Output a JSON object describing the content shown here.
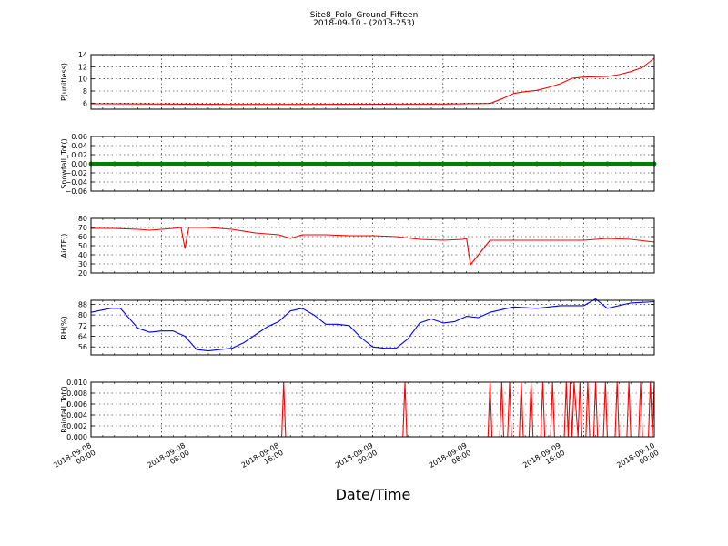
{
  "figure": {
    "title": "Site8_Polo_Ground_Fifteen",
    "subtitle": "2018-09-10 - (2018-253)",
    "xlabel": "Date/Time"
  },
  "chart_data": [
    {
      "type": "line",
      "ylabel": "P(unitless)",
      "ylim": [
        5,
        14
      ],
      "yticks": [
        "6",
        "8",
        "10",
        "12",
        "14"
      ],
      "xlim": [
        "2018-09-08 00:00",
        "2018-09-10 00:00"
      ],
      "grid": true,
      "series": [
        {
          "color": "#ff0000",
          "x": [
            "2018-09-08 00:00",
            "2018-09-08 06:00",
            "2018-09-08 12:00",
            "2018-09-08 18:00",
            "2018-09-09 00:00",
            "2018-09-09 06:00",
            "2018-09-09 08:00",
            "2018-09-09 10:00",
            "2018-09-09 11:00",
            "2018-09-09 12:00",
            "2018-09-09 13:00",
            "2018-09-09 14:00",
            "2018-09-09 15:00",
            "2018-09-09 16:00",
            "2018-09-09 17:00",
            "2018-09-09 18:00",
            "2018-09-09 19:00",
            "2018-09-09 20:00",
            "2018-09-09 21:00",
            "2018-09-09 22:00",
            "2018-09-09 23:00",
            "2018-09-10 00:00"
          ],
          "values": [
            5.9,
            5.85,
            5.8,
            5.8,
            5.82,
            5.85,
            5.9,
            5.95,
            6.7,
            7.6,
            7.9,
            8.1,
            8.6,
            9.2,
            10.1,
            10.3,
            10.35,
            10.4,
            10.7,
            11.2,
            11.9,
            13.4
          ]
        }
      ]
    },
    {
      "type": "scatter",
      "ylabel": "Snowfall_Tot()",
      "ylim": [
        -0.06,
        0.06
      ],
      "yticks": [
        "−0.06",
        "−0.04",
        "−0.02",
        "0.00",
        "0.02",
        "0.04",
        "0.06"
      ],
      "xlim": [
        "2018-09-08 00:00",
        "2018-09-10 00:00"
      ],
      "grid": true,
      "series": [
        {
          "color": "#008000",
          "x": [
            "2018-09-08 00:00",
            "2018-09-08 02:00",
            "2018-09-08 04:00",
            "2018-09-08 06:00",
            "2018-09-08 08:00",
            "2018-09-08 10:00",
            "2018-09-08 12:00",
            "2018-09-08 14:00",
            "2018-09-08 16:00",
            "2018-09-08 18:00",
            "2018-09-08 20:00",
            "2018-09-08 22:00",
            "2018-09-09 00:00",
            "2018-09-09 02:00",
            "2018-09-09 04:00",
            "2018-09-09 06:00",
            "2018-09-09 08:00",
            "2018-09-09 10:00",
            "2018-09-09 12:00",
            "2018-09-09 14:00",
            "2018-09-09 16:00",
            "2018-09-09 18:00",
            "2018-09-09 20:00",
            "2018-09-09 22:00",
            "2018-09-10 00:00"
          ],
          "values": [
            0,
            0,
            0,
            0,
            0,
            0,
            0,
            0,
            0,
            0,
            0,
            0,
            0,
            0,
            0,
            0,
            0,
            0,
            0,
            0,
            0,
            0,
            0,
            0,
            0
          ]
        }
      ]
    },
    {
      "type": "line",
      "ylabel": "AirTF()",
      "ylim": [
        20,
        80
      ],
      "yticks": [
        "20",
        "30",
        "40",
        "50",
        "60",
        "70",
        "80"
      ],
      "xlim": [
        "2018-09-08 00:00",
        "2018-09-10 00:00"
      ],
      "grid": true,
      "series": [
        {
          "color": "#ff0000",
          "x": [
            "2018-09-08 00:00",
            "2018-09-08 02:00",
            "2018-09-08 04:00",
            "2018-09-08 05:00",
            "2018-09-08 07:00",
            "2018-09-08 07:40",
            "2018-09-08 08:00",
            "2018-09-08 08:20",
            "2018-09-08 10:00",
            "2018-09-08 12:00",
            "2018-09-08 14:00",
            "2018-09-08 16:00",
            "2018-09-08 17:00",
            "2018-09-08 18:00",
            "2018-09-08 20:00",
            "2018-09-08 22:00",
            "2018-09-09 00:00",
            "2018-09-09 02:00",
            "2018-09-09 04:00",
            "2018-09-09 06:00",
            "2018-09-09 07:40",
            "2018-09-09 08:00",
            "2018-09-09 08:20",
            "2018-09-09 10:00",
            "2018-09-09 12:00",
            "2018-09-09 14:00",
            "2018-09-09 16:00",
            "2018-09-09 18:00",
            "2018-09-09 20:00",
            "2018-09-09 22:00",
            "2018-09-10 00:00"
          ],
          "values": [
            69,
            69,
            68,
            67,
            69,
            70,
            47,
            70,
            70,
            68,
            64,
            62,
            58,
            62,
            62,
            61,
            61,
            60,
            57,
            56,
            57,
            58,
            29,
            56,
            56,
            56,
            56,
            56,
            58,
            57,
            54
          ]
        }
      ]
    },
    {
      "type": "line",
      "ylabel": "RH(%)",
      "ylim": [
        50,
        91
      ],
      "yticks": [
        "56",
        "64",
        "72",
        "80",
        "88"
      ],
      "xlim": [
        "2018-09-08 00:00",
        "2018-09-10 00:00"
      ],
      "grid": true,
      "series": [
        {
          "color": "#0000ff",
          "x": [
            "2018-09-08 00:00",
            "2018-09-08 01:40",
            "2018-09-08 02:30",
            "2018-09-08 03:00",
            "2018-09-08 04:00",
            "2018-09-08 05:00",
            "2018-09-08 06:00",
            "2018-09-08 07:00",
            "2018-09-08 08:00",
            "2018-09-08 09:00",
            "2018-09-08 10:00",
            "2018-09-08 11:00",
            "2018-09-08 12:00",
            "2018-09-08 13:00",
            "2018-09-08 14:00",
            "2018-09-08 15:00",
            "2018-09-08 16:00",
            "2018-09-08 17:00",
            "2018-09-08 18:00",
            "2018-09-08 19:00",
            "2018-09-08 20:00",
            "2018-09-08 21:00",
            "2018-09-08 22:00",
            "2018-09-08 23:00",
            "2018-09-09 00:00",
            "2018-09-09 01:00",
            "2018-09-09 02:00",
            "2018-09-09 03:00",
            "2018-09-09 04:00",
            "2018-09-09 05:00",
            "2018-09-09 06:00",
            "2018-09-09 07:00",
            "2018-09-09 08:00",
            "2018-09-09 09:00",
            "2018-09-09 10:00",
            "2018-09-09 12:00",
            "2018-09-09 14:00",
            "2018-09-09 16:00",
            "2018-09-09 18:00",
            "2018-09-09 19:00",
            "2018-09-09 20:00",
            "2018-09-09 22:00",
            "2018-09-10 00:00"
          ],
          "values": [
            82,
            85,
            85,
            80,
            70,
            67,
            68,
            68,
            64,
            54,
            53,
            54,
            55,
            59,
            65,
            71,
            75,
            83,
            85,
            80,
            73,
            73,
            72,
            63,
            56,
            55,
            55,
            62,
            74,
            77,
            74,
            75,
            79,
            78,
            82,
            86,
            85,
            87,
            87,
            92,
            85,
            89,
            90
          ]
        }
      ]
    },
    {
      "type": "line",
      "ylabel": "Rainfall_Tot()",
      "ylim": [
        0,
        0.01
      ],
      "yticks": [
        "0.000",
        "0.002",
        "0.004",
        "0.006",
        "0.008",
        "0.010"
      ],
      "xlim": [
        "2018-09-08 00:00",
        "2018-09-10 00:00"
      ],
      "xticks": [
        [
          "2018-09-08",
          "00:00"
        ],
        [
          "2018-09-08",
          "08:00"
        ],
        [
          "2018-09-08",
          "16:00"
        ],
        [
          "2018-09-09",
          "00:00"
        ],
        [
          "2018-09-09",
          "08:00"
        ],
        [
          "2018-09-09",
          "16:00"
        ],
        [
          "2018-09-10",
          "00:00"
        ]
      ],
      "grid": true,
      "series": [
        {
          "color": "#ff0000",
          "x": [
            "2018-09-08 16:15",
            "2018-09-08 16:25",
            "2018-09-08 16:35",
            "2018-09-09 02:35",
            "2018-09-09 02:45",
            "2018-09-09 02:55",
            "2018-09-09 09:50",
            "2018-09-09 10:00",
            "2018-09-09 10:10",
            "2018-09-09 10:50",
            "2018-09-09 11:00",
            "2018-09-09 11:10",
            "2018-09-09 11:30",
            "2018-09-09 11:40",
            "2018-09-09 11:50",
            "2018-09-09 12:30",
            "2018-09-09 12:40",
            "2018-09-09 12:50",
            "2018-09-09 13:20",
            "2018-09-09 13:30",
            "2018-09-09 13:40",
            "2018-09-09 14:20",
            "2018-09-09 14:30",
            "2018-09-09 14:40",
            "2018-09-09 15:10",
            "2018-09-09 15:20",
            "2018-09-09 15:30",
            "2018-09-09 16:20",
            "2018-09-09 16:30",
            "2018-09-09 16:40",
            "2018-09-09 16:50",
            "2018-09-09 17:00",
            "2018-09-09 17:10",
            "2018-09-09 17:30",
            "2018-09-09 17:40",
            "2018-09-09 17:50",
            "2018-09-09 18:10",
            "2018-09-09 18:20",
            "2018-09-09 18:30",
            "2018-09-09 18:50",
            "2018-09-09 19:00",
            "2018-09-09 19:10",
            "2018-09-09 19:40",
            "2018-09-09 19:50",
            "2018-09-09 20:00",
            "2018-09-09 20:40",
            "2018-09-09 20:50",
            "2018-09-09 21:00",
            "2018-09-09 21:40",
            "2018-09-09 21:50",
            "2018-09-09 22:00",
            "2018-09-09 22:40",
            "2018-09-09 22:50",
            "2018-09-09 23:00",
            "2018-09-09 23:30",
            "2018-09-09 23:40",
            "2018-09-09 23:50",
            "2018-09-10 00:00"
          ],
          "values": [
            0,
            0.01,
            0,
            0,
            0.01,
            0,
            0,
            0.01,
            0,
            0,
            0.01,
            0,
            0,
            0.01,
            0,
            0,
            0.01,
            0,
            0,
            0.01,
            0,
            0,
            0.01,
            0,
            0,
            0.01,
            0,
            0,
            0.01,
            0,
            0.01,
            0,
            0.01,
            0,
            0.01,
            0,
            0,
            0.01,
            0,
            0,
            0.01,
            0,
            0,
            0.01,
            0,
            0,
            0.01,
            0,
            0,
            0.01,
            0,
            0,
            0.01,
            0,
            0,
            0.01,
            0,
            0.01
          ]
        }
      ]
    }
  ]
}
